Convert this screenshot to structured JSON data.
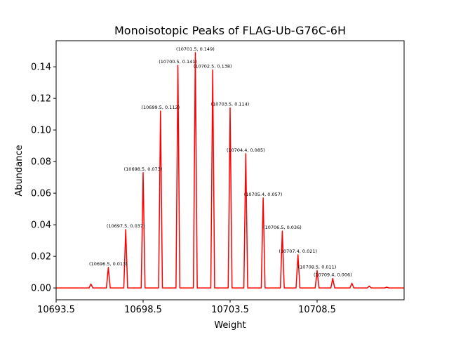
{
  "chart_data": {
    "type": "line",
    "title": "Monoisotopic Peaks of FLAG-Ub-G76C-6H",
    "xlabel": "Weight",
    "ylabel": "Abundance",
    "xlim": [
      10693.5,
      10713.5
    ],
    "ylim": [
      -0.0075,
      0.1565
    ],
    "x_ticks": [
      10693.5,
      10698.5,
      10703.5,
      10708.5
    ],
    "x_tick_labels": [
      "10693.5",
      "10698.5",
      "10703.5",
      "10708.5"
    ],
    "y_ticks": [
      0.0,
      0.02,
      0.04,
      0.06,
      0.08,
      0.1,
      0.12,
      0.14
    ],
    "y_tick_labels": [
      "0.00",
      "0.02",
      "0.04",
      "0.06",
      "0.08",
      "0.10",
      "0.12",
      "0.14"
    ],
    "line_color": "#ff0000",
    "grid": false,
    "x_start": 10693.5,
    "x_end": 10713.5,
    "peaks": [
      {
        "x": 10695.5,
        "y": 0.0025
      },
      {
        "x": 10696.5,
        "y": 0.013
      },
      {
        "x": 10697.5,
        "y": 0.037
      },
      {
        "x": 10698.5,
        "y": 0.073
      },
      {
        "x": 10699.5,
        "y": 0.112
      },
      {
        "x": 10700.5,
        "y": 0.141
      },
      {
        "x": 10701.5,
        "y": 0.149
      },
      {
        "x": 10702.5,
        "y": 0.138
      },
      {
        "x": 10703.5,
        "y": 0.114
      },
      {
        "x": 10704.4,
        "y": 0.085
      },
      {
        "x": 10705.4,
        "y": 0.057
      },
      {
        "x": 10706.5,
        "y": 0.036
      },
      {
        "x": 10707.4,
        "y": 0.021
      },
      {
        "x": 10708.5,
        "y": 0.011
      },
      {
        "x": 10709.4,
        "y": 0.006
      },
      {
        "x": 10710.5,
        "y": 0.003
      },
      {
        "x": 10711.5,
        "y": 0.0012
      },
      {
        "x": 10712.5,
        "y": 0.0005
      }
    ],
    "annotations": [
      {
        "x": 10696.5,
        "y": 0.013,
        "text": "(10696.5, 0.013)"
      },
      {
        "x": 10697.5,
        "y": 0.037,
        "text": "(10697.5, 0.037)"
      },
      {
        "x": 10698.5,
        "y": 0.073,
        "text": "(10698.5, 0.073)"
      },
      {
        "x": 10699.5,
        "y": 0.112,
        "text": "(10699.5, 0.112)"
      },
      {
        "x": 10700.5,
        "y": 0.141,
        "text": "(10700.5, 0.141)"
      },
      {
        "x": 10701.5,
        "y": 0.149,
        "text": "(10701.5, 0.149)"
      },
      {
        "x": 10702.5,
        "y": 0.138,
        "text": "(10702.5, 0.138)"
      },
      {
        "x": 10703.5,
        "y": 0.114,
        "text": "(10703.5, 0.114)"
      },
      {
        "x": 10704.4,
        "y": 0.085,
        "text": "(10704.4, 0.085)"
      },
      {
        "x": 10705.4,
        "y": 0.057,
        "text": "(10705.4, 0.057)"
      },
      {
        "x": 10706.5,
        "y": 0.036,
        "text": "(10706.5, 0.036)"
      },
      {
        "x": 10707.4,
        "y": 0.021,
        "text": "(10707.4, 0.021)"
      },
      {
        "x": 10708.5,
        "y": 0.011,
        "text": "(10708.5, 0.011)"
      },
      {
        "x": 10709.4,
        "y": 0.006,
        "text": "(10709.4, 0.006)"
      }
    ]
  }
}
